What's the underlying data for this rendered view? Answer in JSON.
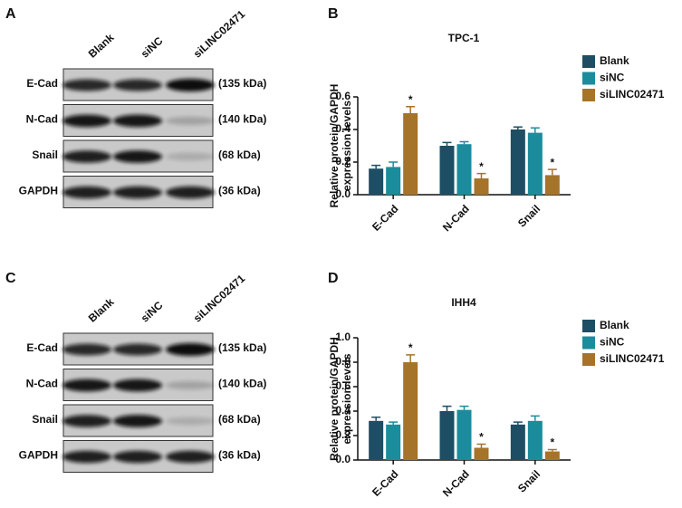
{
  "blots": [
    {
      "label": "A",
      "columns": [
        "Blank",
        "siNC",
        "siLINC02471"
      ],
      "rows": [
        {
          "name": "E-Cad",
          "size": "(135 kDa)"
        },
        {
          "name": "N-Cad",
          "size": "(140 kDa)"
        },
        {
          "name": "Snail",
          "size": "(68 kDa)"
        },
        {
          "name": "GAPDH",
          "size": "(36 kDa)"
        }
      ]
    },
    {
      "label": "C",
      "columns": [
        "Blank",
        "siNC",
        "siLINC02471"
      ],
      "rows": [
        {
          "name": "E-Cad",
          "size": "(135 kDa)"
        },
        {
          "name": "N-Cad",
          "size": "(140 kDa)"
        },
        {
          "name": "Snail",
          "size": "(68 kDa)"
        },
        {
          "name": "GAPDH",
          "size": "(36 kDa)"
        }
      ]
    }
  ],
  "chart_data": [
    {
      "type": "bar",
      "panel": "B",
      "title": "TPC-1",
      "ylabel": [
        "Relative protein/GAPDH",
        "expression levels"
      ],
      "categories": [
        "E-Cad",
        "N-Cad",
        "Snail"
      ],
      "series": [
        {
          "name": "Blank",
          "color": "#1d4e63",
          "values": [
            0.16,
            0.3,
            0.4
          ],
          "errors": [
            0.02,
            0.02,
            0.015
          ]
        },
        {
          "name": "siNC",
          "color": "#1a8c9c",
          "values": [
            0.17,
            0.31,
            0.38
          ],
          "errors": [
            0.03,
            0.015,
            0.03
          ]
        },
        {
          "name": "siLINC02471",
          "color": "#a6732b",
          "values": [
            0.5,
            0.1,
            0.12
          ],
          "errors": [
            0.04,
            0.03,
            0.035
          ],
          "significance": [
            "*",
            "*",
            "*"
          ]
        }
      ],
      "ylim": [
        0,
        0.6
      ],
      "yticks": [
        {
          "value": 0,
          "label": "0.0"
        },
        0.2,
        0.4,
        0.6
      ]
    },
    {
      "type": "bar",
      "panel": "D",
      "title": "IHH4",
      "ylabel": [
        "Relative protein/GAPDH",
        "expression levels"
      ],
      "categories": [
        "E-Cad",
        "N-Cad",
        "Snail"
      ],
      "series": [
        {
          "name": "Blank",
          "color": "#1d4e63",
          "values": [
            0.32,
            0.4,
            0.29
          ],
          "errors": [
            0.03,
            0.04,
            0.02
          ]
        },
        {
          "name": "siNC",
          "color": "#1a8c9c",
          "values": [
            0.29,
            0.41,
            0.32
          ],
          "errors": [
            0.02,
            0.03,
            0.04
          ]
        },
        {
          "name": "siLINC02471",
          "color": "#a6732b",
          "values": [
            0.8,
            0.1,
            0.07
          ],
          "errors": [
            0.06,
            0.03,
            0.015
          ],
          "significance": [
            "*",
            "*",
            "*"
          ]
        }
      ],
      "ylim": [
        0,
        1.0
      ],
      "yticks": [
        {
          "value": 0,
          "label": "0.0"
        },
        0.2,
        0.4,
        0.6,
        0.8,
        {
          "value": 1.0,
          "label": "1.0"
        }
      ]
    }
  ]
}
